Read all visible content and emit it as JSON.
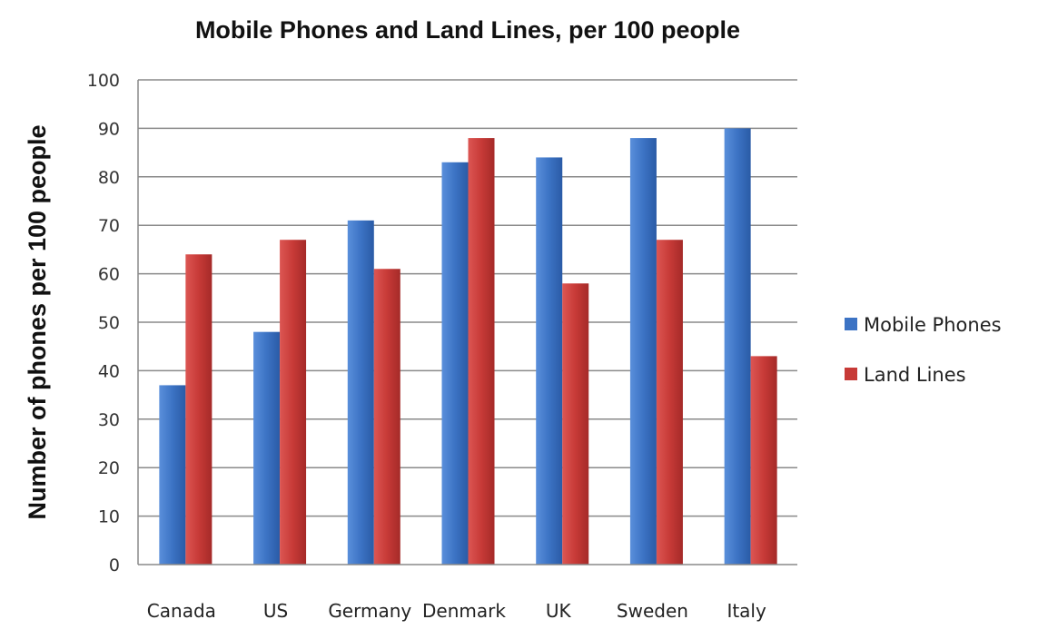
{
  "chart_data": {
    "type": "bar",
    "title": "Mobile Phones and Land Lines, per 100 people",
    "ylabel": "Number of phones per 100 people",
    "xlabel": "",
    "categories": [
      "Canada",
      "US",
      "Germany",
      "Denmark",
      "UK",
      "Sweden",
      "Italy"
    ],
    "series": [
      {
        "name": "Mobile Phones",
        "color": "#3c73c4",
        "values": [
          37,
          48,
          71,
          83,
          84,
          88,
          90
        ]
      },
      {
        "name": "Land Lines",
        "color": "#c73a37",
        "values": [
          64,
          67,
          61,
          88,
          58,
          67,
          43
        ]
      }
    ],
    "ylim": [
      0,
      100
    ],
    "yticks": [
      "0",
      "10",
      "20",
      "30",
      "40",
      "50",
      "60",
      "70",
      "80",
      "90",
      "100"
    ],
    "grid": true,
    "legend_position": "right"
  }
}
